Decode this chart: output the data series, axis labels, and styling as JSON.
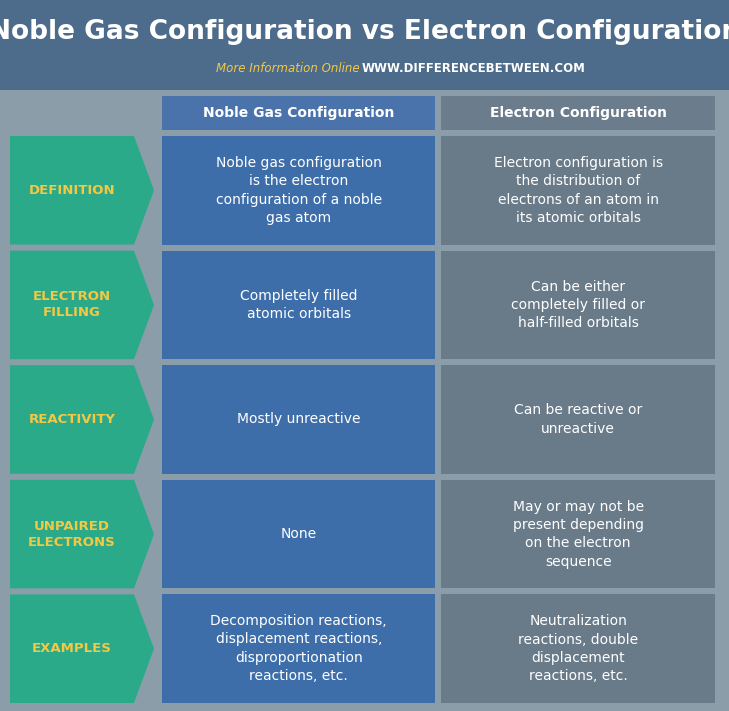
{
  "title": "Noble Gas Configuration vs Electron Configuration",
  "subtitle_plain": "More Information Online",
  "subtitle_url": "WWW.DIFFERENCEBETWEEN.COM",
  "col1_header": "Noble Gas Configuration",
  "col2_header": "Electron Configuration",
  "background_color": "#8c9daa",
  "title_bg_color": "#4d6b8a",
  "col1_header_bg": "#4a72ab",
  "col2_header_bg": "#6b7d8d",
  "col1_cell_color": "#3d6eaa",
  "col2_cell_color": "#697a89",
  "arrow_color": "#2baa8a",
  "title_color": "#ffffff",
  "subtitle_plain_color": "#f5c842",
  "subtitle_url_color": "#ffffff",
  "header_text_color": "#ffffff",
  "cell_text_color": "#ffffff",
  "arrow_label_color": "#f5c842",
  "fig_width": 7.29,
  "fig_height": 7.11,
  "dpi": 100,
  "rows": [
    {
      "label": "DEFINITION",
      "col1": "Noble gas configuration\nis the electron\nconfiguration of a noble\ngas atom",
      "col2": "Electron configuration is\nthe distribution of\nelectrons of an atom in\nits atomic orbitals"
    },
    {
      "label": "ELECTRON\nFILLING",
      "col1": "Completely filled\natomic orbitals",
      "col2": "Can be either\ncompletely filled or\nhalf-filled orbitals"
    },
    {
      "label": "REACTIVITY",
      "col1": "Mostly unreactive",
      "col2": "Can be reactive or\nunreactive"
    },
    {
      "label": "UNPAIRED\nELECTRONS",
      "col1": "None",
      "col2": "May or may not be\npresent depending\non the electron\nsequence"
    },
    {
      "label": "EXAMPLES",
      "col1": "Decomposition reactions,\ndisplacement reactions,\ndisproportionation\nreactions, etc.",
      "col2": "Neutralization\nreactions, double\ndisplacement\nreactions, etc."
    }
  ]
}
